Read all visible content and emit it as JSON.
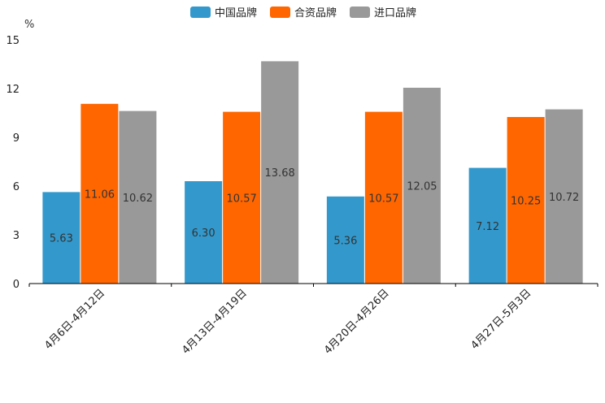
{
  "chart_data": {
    "type": "bar",
    "categories": [
      "4月6日-4月12日",
      "4月13日-4月19日",
      "4月20日-4月26日",
      "4月27日-5月3日"
    ],
    "series": [
      {
        "name": "中国品牌",
        "color": "#3399cc",
        "values": [
          5.63,
          6.3,
          5.36,
          7.12
        ]
      },
      {
        "name": "合资品牌",
        "color": "#ff6600",
        "values": [
          11.06,
          10.57,
          10.57,
          10.25
        ]
      },
      {
        "name": "进口品牌",
        "color": "#999999",
        "values": [
          10.62,
          13.68,
          12.05,
          10.72
        ]
      }
    ],
    "value_labels": [
      [
        "5.63",
        "6.30",
        "5.36",
        "7.12"
      ],
      [
        "11.06",
        "10.57",
        "10.57",
        "10.25"
      ],
      [
        "10.62",
        "13.68",
        "12.05",
        "10.72"
      ]
    ],
    "ylabel": "%",
    "ylim": [
      0,
      15
    ],
    "yticks": [
      0,
      3,
      6,
      9,
      12,
      15
    ],
    "legend_position": "top-center",
    "grid": false
  }
}
